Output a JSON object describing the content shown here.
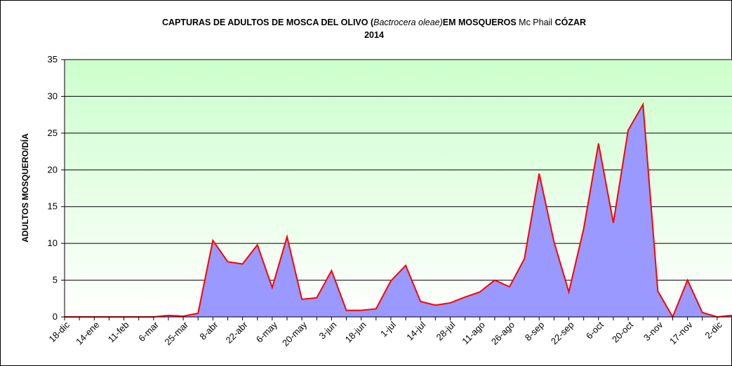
{
  "chart_data": {
    "type": "area",
    "title_parts": [
      "CAPTURAS DE ADULTOS DE MOSCA DEL OLIVO (",
      "Bactrocera oleae)",
      "EM MOSQUEROS",
      "Mc Phail",
      "CÓZAR"
    ],
    "subtitle": "2014",
    "ylabel": "ADULTOS MOSQUERO/DÍA",
    "categories": [
      "18-dic",
      null,
      "14-ene",
      null,
      "11-feb",
      null,
      "6-mar",
      null,
      "25-mar",
      null,
      "8-abr",
      null,
      "22-abr",
      null,
      "6-may",
      null,
      "20-may",
      null,
      "3-jun",
      null,
      "18-jun",
      null,
      "1-jul",
      null,
      "14-jul",
      null,
      "28-jul",
      null,
      "11-ago",
      null,
      "26-ago",
      null,
      "8-sep",
      null,
      "22-sep",
      null,
      "6-oct",
      null,
      "20-oct",
      null,
      "3-nov",
      null,
      "17-nov",
      null,
      "2-dic",
      null
    ],
    "series": [
      {
        "color": "#ff0000",
        "fill": "#9999ff",
        "values": [
          0,
          0,
          0,
          0,
          0,
          0,
          0,
          0.2,
          0.1,
          0.5,
          10.4,
          7.5,
          7.2,
          9.8,
          4.0,
          10.9,
          2.4,
          2.6,
          6.3,
          0.9,
          0.9,
          1.1,
          4.9,
          7.0,
          2.1,
          1.6,
          1.9,
          2.7,
          3.4,
          5.0,
          4.1,
          7.9,
          19.5,
          10.2,
          3.4,
          12.0,
          23.6,
          12.8,
          25.4,
          28.9,
          3.5,
          0,
          5.0,
          0.6,
          0,
          0.2
        ]
      }
    ],
    "ylim": [
      0,
      35
    ],
    "yticks": [
      0,
      5,
      10,
      15,
      20,
      25,
      30,
      35
    ],
    "grid": true
  }
}
